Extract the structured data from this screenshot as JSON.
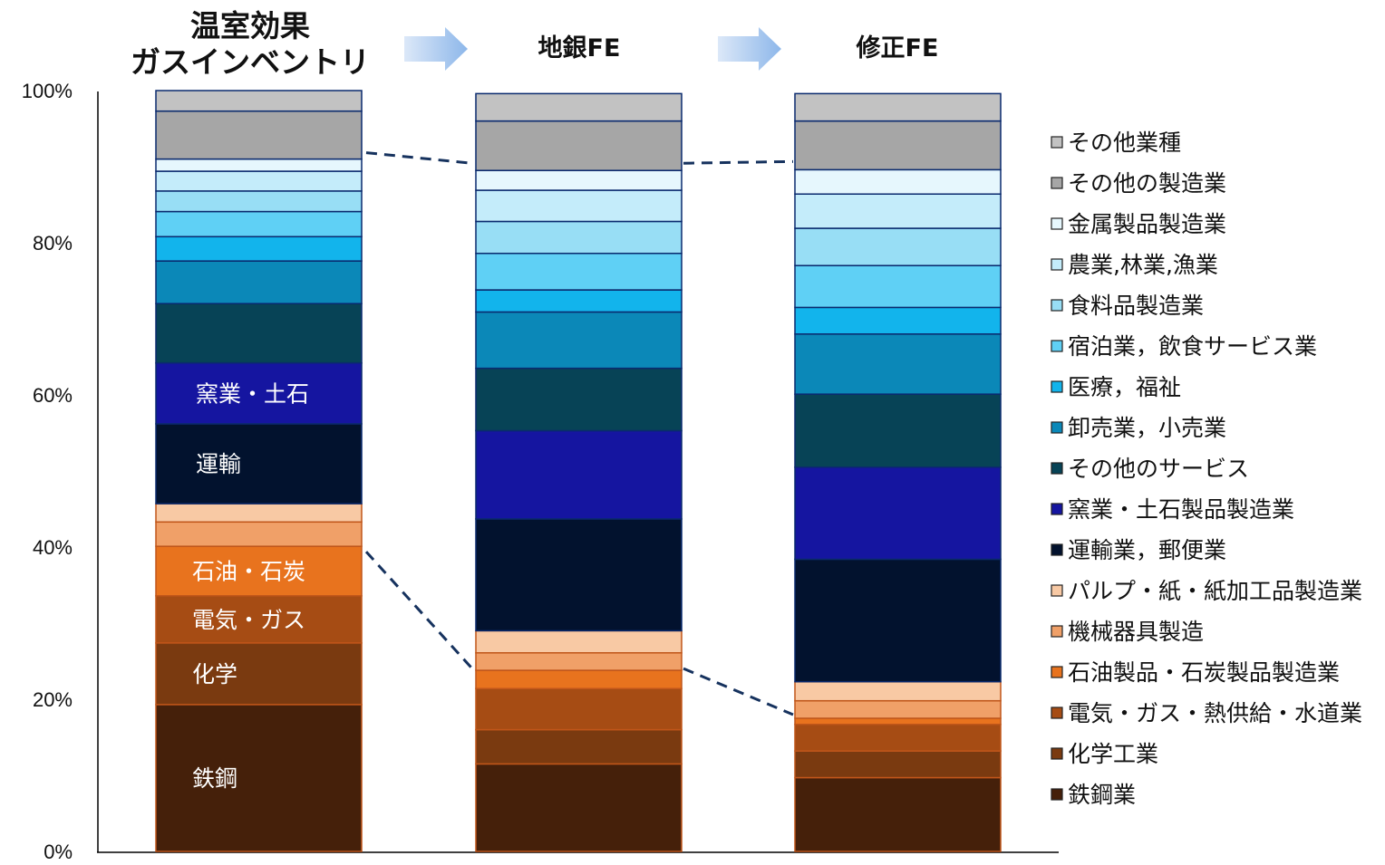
{
  "chart_data": {
    "type": "bar",
    "stacked": true,
    "y_unit": "percent",
    "ylim": [
      0,
      100
    ],
    "y_ticks": [
      "0%",
      "20%",
      "40%",
      "60%",
      "80%",
      "100%"
    ],
    "categories": [
      {
        "title_lines": [
          "温室効果",
          "ガスインベントリ"
        ]
      },
      {
        "title_lines": [
          "地銀FE"
        ]
      },
      {
        "title_lines": [
          "修正FE"
        ]
      }
    ],
    "series": [
      {
        "name": "鉄鋼業",
        "color": "#45200A",
        "values": [
          19.3,
          11.5,
          9.7
        ],
        "label": "鉄鋼"
      },
      {
        "name": "化学工業",
        "color": "#7A3A10",
        "values": [
          8.1,
          4.5,
          3.5
        ],
        "label": "化学"
      },
      {
        "name": "電気・ガス・熱供給・水道業",
        "color": "#A64C14",
        "values": [
          6.2,
          5.4,
          3.5
        ],
        "label": "電気・ガス"
      },
      {
        "name": "石油製品・石炭製品製造業",
        "color": "#E8731E",
        "values": [
          6.5,
          2.4,
          0.8
        ],
        "label": "石油・石炭"
      },
      {
        "name": "機械器具製造",
        "color": "#F0A068",
        "values": [
          3.2,
          2.3,
          2.3
        ]
      },
      {
        "name": "パルプ・紙・紙加工品製造業",
        "color": "#F8C9A4",
        "values": [
          2.4,
          2.9,
          2.5
        ]
      },
      {
        "name": "運輸業，郵便業",
        "color": "#02122E",
        "values": [
          10.5,
          14.7,
          16.1
        ],
        "label": "運輸"
      },
      {
        "name": "窯業・土石製品製造業",
        "color": "#1515A0",
        "values": [
          8.0,
          11.6,
          12.1
        ],
        "label": "窯業・土石"
      },
      {
        "name": "その他のサービス",
        "color": "#074356",
        "values": [
          7.8,
          8.2,
          9.6
        ]
      },
      {
        "name": "卸売業，小売業",
        "color": "#0B88B8",
        "values": [
          5.6,
          7.4,
          7.9
        ]
      },
      {
        "name": "医療，福祉",
        "color": "#12B4EC",
        "values": [
          3.2,
          2.9,
          3.5
        ]
      },
      {
        "name": "宿泊業，飲食サービス業",
        "color": "#5FD0F5",
        "values": [
          3.3,
          4.8,
          5.5
        ]
      },
      {
        "name": "食料品製造業",
        "color": "#98DEF5",
        "values": [
          2.7,
          4.2,
          4.9
        ]
      },
      {
        "name": "農業,林業,漁業",
        "color": "#C4ECFA",
        "values": [
          2.6,
          4.1,
          4.5
        ]
      },
      {
        "name": "金属製品製造業",
        "color": "#E6F7FD",
        "values": [
          1.6,
          2.6,
          3.2
        ]
      },
      {
        "name": "その他の製造業",
        "color": "#A6A6A6",
        "values": [
          6.3,
          6.5,
          6.4
        ]
      },
      {
        "name": "その他業種",
        "color": "#C2C2C2",
        "values": [
          2.7,
          3.6,
          3.6
        ]
      }
    ],
    "legend_position": "right",
    "grid": false
  }
}
